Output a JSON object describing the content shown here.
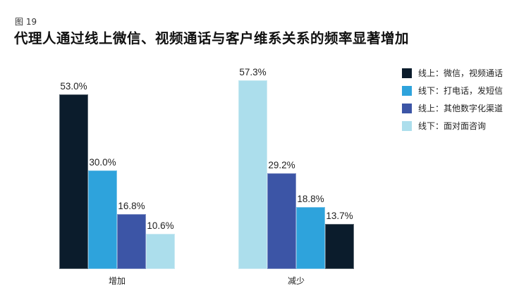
{
  "figure": {
    "label": "图 19",
    "title": "代理人通过线上微信、视频通话与客户维系关系的频率显著增加"
  },
  "legend": [
    {
      "label": "线上：微信，视频通话",
      "color": "#0b1c2c"
    },
    {
      "label": "线下：打电话，发短信",
      "color": "#2ea3dc"
    },
    {
      "label": "线上：其他数字化渠道",
      "color": "#3c55a6"
    },
    {
      "label": "线下：面对面咨询",
      "color": "#acdeec"
    }
  ],
  "groups": [
    {
      "category": "增加",
      "bars": [
        {
          "series": "线上：微信，视频通话",
          "value": 53.0,
          "label": "53.0%",
          "color": "#0b1c2c"
        },
        {
          "series": "线下：打电话，发短信",
          "value": 30.0,
          "label": "30.0%",
          "color": "#2ea3dc"
        },
        {
          "series": "线上：其他数字化渠道",
          "value": 16.8,
          "label": "16.8%",
          "color": "#3c55a6"
        },
        {
          "series": "线下：面对面咨询",
          "value": 10.6,
          "label": "10.6%",
          "color": "#acdeec"
        }
      ]
    },
    {
      "category": "减少",
      "bars": [
        {
          "series": "线下：面对面咨询",
          "value": 57.3,
          "label": "57.3%",
          "color": "#acdeec"
        },
        {
          "series": "线上：其他数字化渠道",
          "value": 29.2,
          "label": "29.2%",
          "color": "#3c55a6"
        },
        {
          "series": "线下：打电话，发短信",
          "value": 18.8,
          "label": "18.8%",
          "color": "#2ea3dc"
        },
        {
          "series": "线上：微信，视频通话",
          "value": 13.7,
          "label": "13.7%",
          "color": "#0b1c2c"
        }
      ]
    }
  ],
  "chart_data": {
    "type": "bar",
    "title": "代理人通过线上微信、视频通话与客户维系关系的频率显著增加",
    "subtitle": "图 19",
    "categories": [
      "增加",
      "减少"
    ],
    "series": [
      {
        "name": "线上：微信，视频通话",
        "values": [
          53.0,
          13.7
        ]
      },
      {
        "name": "线下：打电话，发短信",
        "values": [
          30.0,
          18.8
        ]
      },
      {
        "name": "线上：其他数字化渠道",
        "values": [
          16.8,
          29.2
        ]
      },
      {
        "name": "线下：面对面咨询",
        "values": [
          10.6,
          57.3
        ]
      }
    ],
    "xlabel": "",
    "ylabel": "",
    "unit": "%",
    "ylim": [
      0,
      60
    ],
    "grid": false,
    "legend_position": "right",
    "notes": "Bars within each group sorted descending; data labels shown above each bar."
  }
}
